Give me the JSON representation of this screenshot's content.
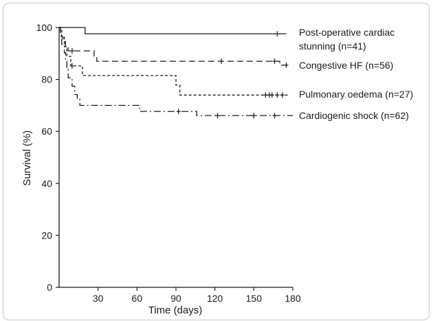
{
  "chart_data": {
    "type": "line",
    "subtype": "kaplan-meier survival curve",
    "title": "",
    "xlabel": "Time (days)",
    "ylabel": "Survival (%)",
    "xlim": [
      0,
      180
    ],
    "ylim": [
      0,
      100
    ],
    "xticks": [
      "30",
      "60",
      "90",
      "120",
      "150",
      "180"
    ],
    "yticks": [
      "0",
      "20",
      "40",
      "60",
      "80",
      "100"
    ],
    "grid": false,
    "legend_placement": "right, labels next to curve ends",
    "series": [
      {
        "name": "Post-operative cardiac stunning (n=41)",
        "label_lines": [
          "Post-operative cardiac",
          "stunning (n=41)"
        ],
        "style": "solid",
        "color": "#1a1a1a",
        "steps": [
          [
            0,
            100
          ],
          [
            20,
            100
          ],
          [
            20,
            97.6
          ],
          [
            175,
            97.6
          ]
        ],
        "censored": [
          [
            168,
            97.6
          ]
        ]
      },
      {
        "name": "Congestive HF (n=56)",
        "label_lines": [
          "Congestive HF (n=56)"
        ],
        "style": "dashed",
        "color": "#1a1a1a",
        "steps": [
          [
            0,
            100
          ],
          [
            1,
            100
          ],
          [
            1,
            98.2
          ],
          [
            2,
            98.2
          ],
          [
            2,
            96.4
          ],
          [
            3,
            96.4
          ],
          [
            3,
            94.6
          ],
          [
            5,
            94.6
          ],
          [
            5,
            92.8
          ],
          [
            7,
            92.8
          ],
          [
            7,
            91
          ],
          [
            27,
            91
          ],
          [
            27,
            89
          ],
          [
            29,
            89
          ],
          [
            29,
            87
          ],
          [
            170,
            87
          ],
          [
            170,
            85.5
          ],
          [
            178,
            85.5
          ]
        ],
        "censored": [
          [
            10,
            91
          ],
          [
            125,
            87
          ],
          [
            166,
            87
          ],
          [
            175,
            85.5
          ]
        ]
      },
      {
        "name": "Pulmonary oedema (n=27)",
        "label_lines": [
          "Pulmonary oedema (n=27)"
        ],
        "style": "dotted-dash",
        "color": "#1a1a1a",
        "steps": [
          [
            0,
            100
          ],
          [
            2,
            100
          ],
          [
            2,
            96.3
          ],
          [
            4,
            96.3
          ],
          [
            4,
            92.6
          ],
          [
            6,
            92.6
          ],
          [
            6,
            88.9
          ],
          [
            9,
            88.9
          ],
          [
            9,
            85.2
          ],
          [
            18,
            85.2
          ],
          [
            18,
            81.5
          ],
          [
            90,
            81.5
          ],
          [
            90,
            77.8
          ],
          [
            93,
            77.8
          ],
          [
            93,
            74
          ],
          [
            176,
            74
          ]
        ],
        "censored": [
          [
            10,
            85.2
          ],
          [
            159,
            74
          ],
          [
            162,
            74
          ],
          [
            164,
            74
          ],
          [
            168,
            74
          ],
          [
            172,
            74
          ]
        ]
      },
      {
        "name": "Cardiogenic shock (n=62)",
        "label_lines": [
          "Cardiogenic shock (n=62)"
        ],
        "style": "dash-dot",
        "color": "#1a1a1a",
        "steps": [
          [
            0,
            100
          ],
          [
            1,
            100
          ],
          [
            1,
            96.8
          ],
          [
            2,
            96.8
          ],
          [
            2,
            93.5
          ],
          [
            4,
            93.5
          ],
          [
            4,
            90.3
          ],
          [
            5,
            90.3
          ],
          [
            5,
            87.1
          ],
          [
            6,
            87.1
          ],
          [
            6,
            83.9
          ],
          [
            7,
            83.9
          ],
          [
            7,
            80.6
          ],
          [
            10,
            80.6
          ],
          [
            10,
            77.4
          ],
          [
            12,
            77.4
          ],
          [
            12,
            74.2
          ],
          [
            14,
            74.2
          ],
          [
            14,
            72.6
          ],
          [
            16,
            72.6
          ],
          [
            16,
            70
          ],
          [
            62,
            70
          ],
          [
            62,
            67.7
          ],
          [
            106,
            67.7
          ],
          [
            106,
            66.1
          ],
          [
            180,
            66.1
          ]
        ],
        "censored": [
          [
            92,
            67.7
          ],
          [
            122,
            66.1
          ],
          [
            150,
            66.1
          ],
          [
            166,
            66.1
          ]
        ]
      }
    ]
  }
}
